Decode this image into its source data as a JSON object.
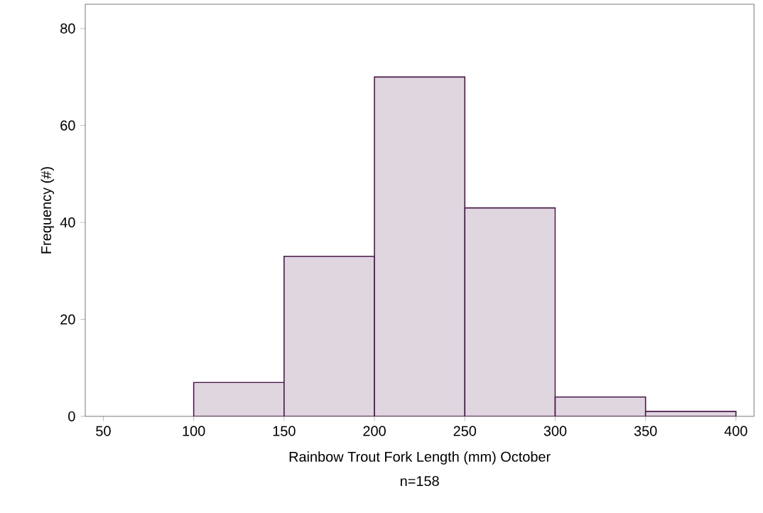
{
  "chart_data": {
    "type": "histogram",
    "xlabel": "Rainbow Trout Fork Length (mm) October",
    "ylabel": "Frequency (#)",
    "annotations": [
      "n=158"
    ],
    "bins": [
      100,
      150,
      200,
      250,
      300,
      350,
      400
    ],
    "values": [
      7,
      33,
      70,
      43,
      4,
      1
    ],
    "color": "#4b1a4b",
    "xlim": [
      40,
      410
    ],
    "ylim": [
      0,
      85
    ],
    "xticks": [
      50,
      100,
      150,
      200,
      250,
      300,
      350,
      400
    ],
    "yticks": [
      0,
      20,
      40,
      60,
      80
    ],
    "grid": false
  }
}
